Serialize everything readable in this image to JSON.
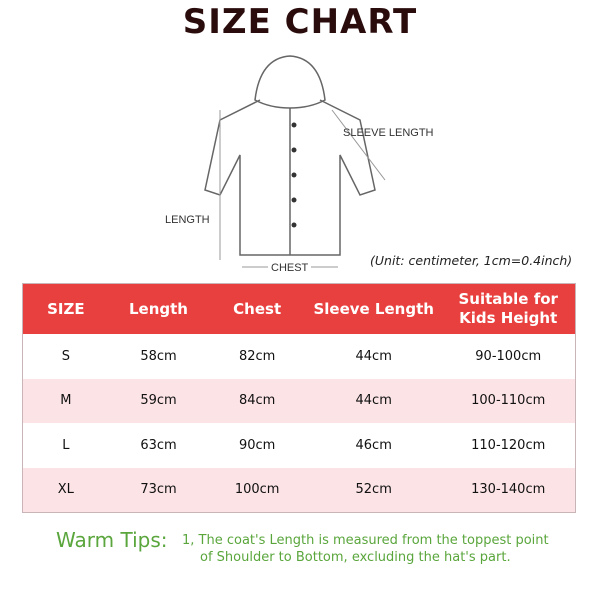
{
  "title": "SIZE CHART",
  "diagram": {
    "sleeve_label": "SLEEVE LENGTH",
    "length_label": "LENGTH",
    "chest_label": "CHEST"
  },
  "unit_note": "(Unit: centimeter, 1cm=0.4inch)",
  "table": {
    "headers": [
      "SIZE",
      "Length",
      "Chest",
      "Sleeve Length",
      "Suitable for Kids Height"
    ],
    "rows": [
      [
        "S",
        "58cm",
        "82cm",
        "44cm",
        "90-100cm"
      ],
      [
        "M",
        "59cm",
        "84cm",
        "44cm",
        "100-110cm"
      ],
      [
        "L",
        "63cm",
        "90cm",
        "46cm",
        "110-120cm"
      ],
      [
        "XL",
        "73cm",
        "100cm",
        "52cm",
        "130-140cm"
      ]
    ]
  },
  "tips": {
    "heading": "Warm Tips:",
    "line1": "1, The coat's Length is measured from the toppest point",
    "line2": "of Shoulder to Bottom, excluding the hat's part."
  },
  "colors": {
    "header": "#e8403f",
    "alt_row": "#fbe3e6",
    "tips": "#5aa63c"
  }
}
